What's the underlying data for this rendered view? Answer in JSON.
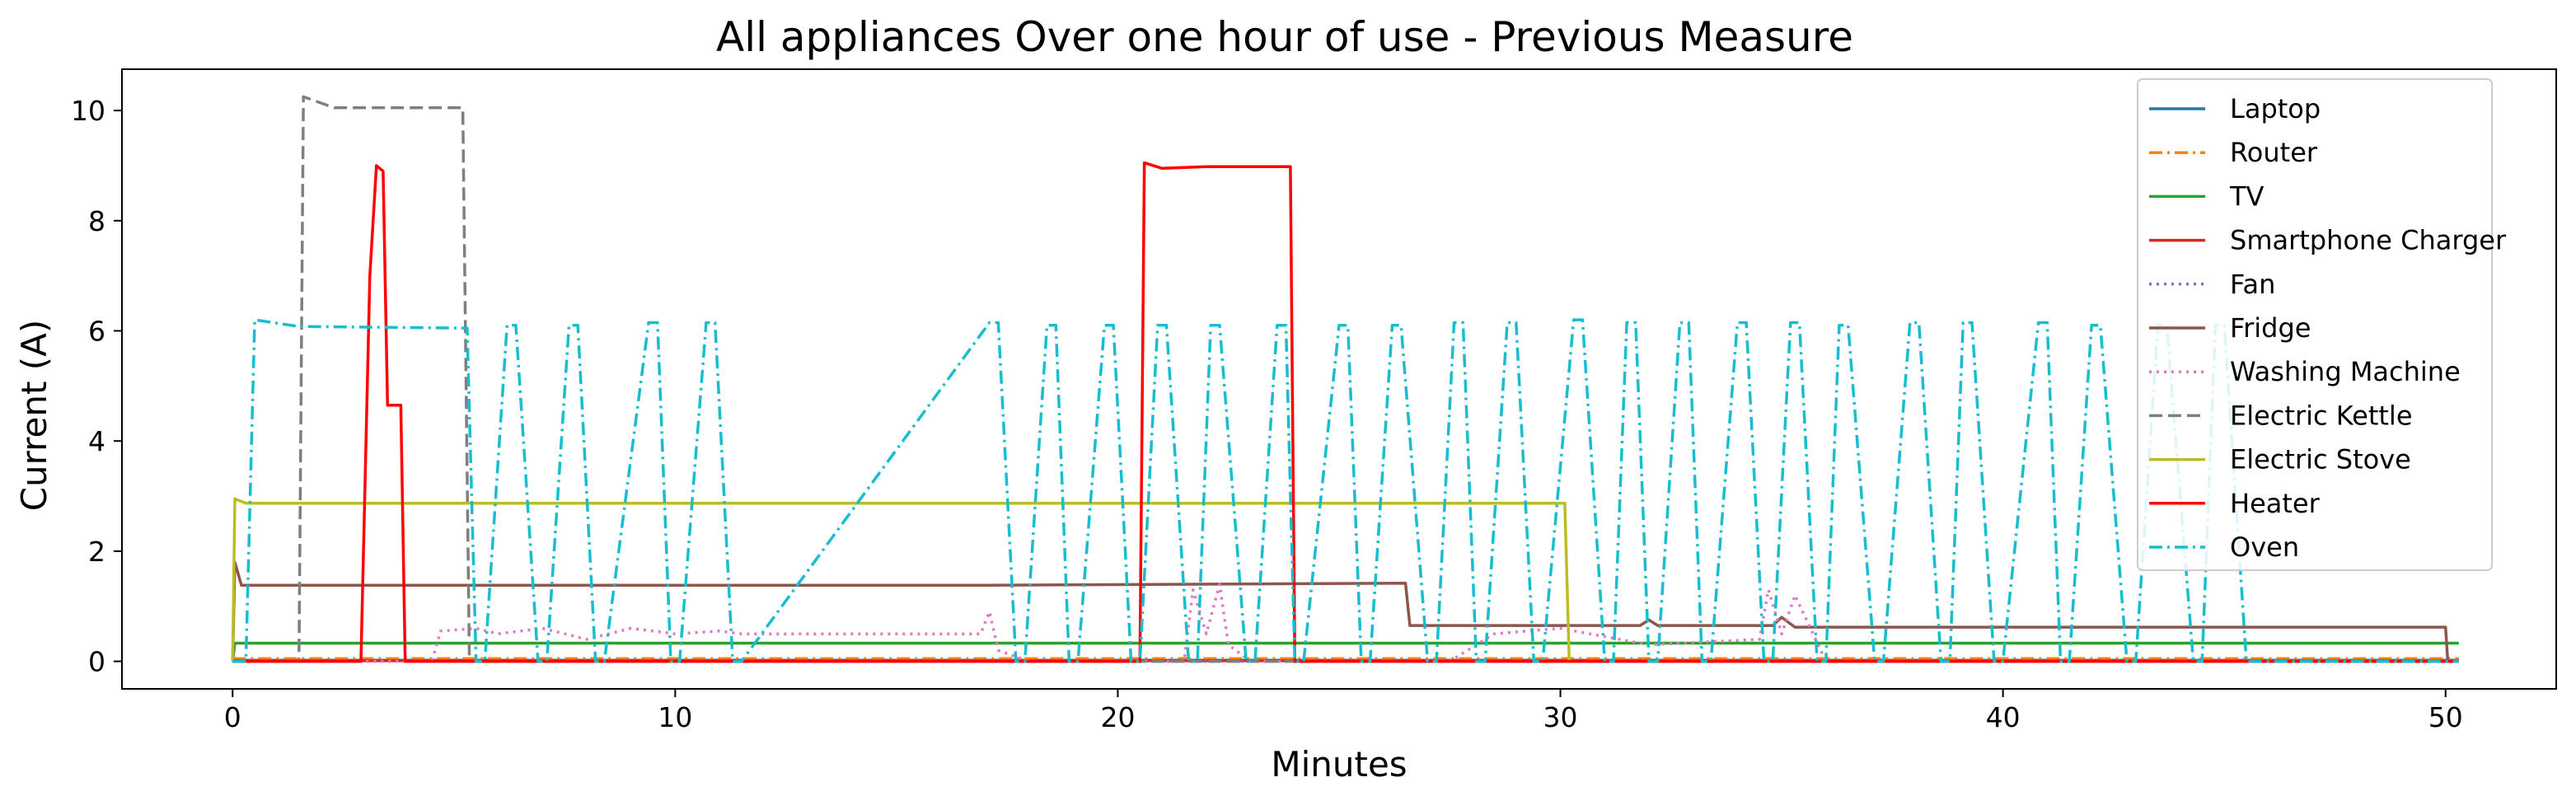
{
  "chart_data": {
    "type": "line",
    "title": "All appliances Over one hour of use - Previous Measure",
    "xlabel": "Minutes",
    "ylabel": "Current (A)",
    "xlim": [
      -2.5,
      52.5
    ],
    "ylim": [
      -0.5,
      10.75
    ],
    "xticks": [
      0,
      10,
      20,
      30,
      40,
      50
    ],
    "yticks": [
      0,
      2,
      4,
      6,
      8,
      10
    ],
    "grid": false,
    "legend_position": "top-right",
    "series": [
      {
        "name": "Laptop",
        "color": "#1f77b4",
        "style": "solid",
        "x": [
          0,
          50.3
        ],
        "y": [
          0.02,
          0.02
        ]
      },
      {
        "name": "Router",
        "color": "#ff7f0e",
        "style": "dashdot",
        "x": [
          0,
          50.3
        ],
        "y": [
          0.05,
          0.05
        ]
      },
      {
        "name": "TV",
        "color": "#2ca02c",
        "style": "solid",
        "x": [
          0,
          0.05,
          50.3
        ],
        "y": [
          0,
          0.33,
          0.33
        ]
      },
      {
        "name": "Smartphone Charger",
        "color": "#d62728",
        "style": "solid",
        "x": [
          0,
          50.3
        ],
        "y": [
          0.01,
          0.01
        ]
      },
      {
        "name": "Fan",
        "color": "#9467bd",
        "style": "dotted",
        "x": [
          0,
          50.3
        ],
        "y": [
          0.0,
          0.0
        ]
      },
      {
        "name": "Fridge",
        "color": "#8c564b",
        "style": "solid",
        "x": [
          0,
          0.05,
          0.2,
          17.0,
          26.5,
          26.6,
          31.8,
          32.0,
          32.2,
          34.8,
          35.0,
          35.3,
          50.0,
          50.05
        ],
        "y": [
          0.0,
          1.8,
          1.38,
          1.38,
          1.42,
          0.65,
          0.65,
          0.75,
          0.65,
          0.65,
          0.8,
          0.62,
          0.62,
          0.0
        ]
      },
      {
        "name": "Washing Machine",
        "color": "#e377c2",
        "style": "dotted",
        "x": [
          0,
          4.5,
          4.7,
          5.5,
          6,
          7,
          8,
          9,
          10,
          11,
          11.5,
          16.9,
          17.1,
          17.3,
          18,
          21.5,
          21.7,
          22.0,
          22.3,
          22.5,
          23,
          27.5,
          28.5,
          30,
          32,
          34.5,
          34.7,
          35.0,
          35.3,
          36,
          50.3
        ],
        "y": [
          0.0,
          0.0,
          0.55,
          0.6,
          0.5,
          0.6,
          0.4,
          0.6,
          0.5,
          0.55,
          0.5,
          0.5,
          0.9,
          0.2,
          0.0,
          0.0,
          1.3,
          0.5,
          1.4,
          0.3,
          0.0,
          0.0,
          0.5,
          0.6,
          0.3,
          0.4,
          1.3,
          0.5,
          1.2,
          0.0,
          0.0
        ]
      },
      {
        "name": "Electric Kettle",
        "color": "#7f7f7f",
        "style": "dashed",
        "x": [
          0,
          1.5,
          1.6,
          2.3,
          5.2,
          5.35,
          50.3
        ],
        "y": [
          0.0,
          0.0,
          10.25,
          10.05,
          10.05,
          0.0,
          0.0
        ]
      },
      {
        "name": "Electric Stove",
        "color": "#bcbd22",
        "style": "solid",
        "x": [
          0,
          0.05,
          0.3,
          30.1,
          30.2,
          50.3
        ],
        "y": [
          0.0,
          2.95,
          2.87,
          2.87,
          0.0,
          0.0
        ]
      },
      {
        "name": "Heater",
        "color": "#ff0000",
        "style": "solid",
        "x": [
          0,
          2.9,
          3.1,
          3.25,
          3.4,
          3.5,
          3.8,
          3.9,
          20.5,
          20.6,
          21.0,
          22.0,
          23.9,
          24.0,
          50.3
        ],
        "y": [
          0.0,
          0.0,
          7.0,
          9.0,
          8.9,
          4.65,
          4.65,
          0.0,
          0.0,
          9.05,
          8.95,
          8.98,
          8.98,
          0.0,
          0.0
        ]
      },
      {
        "name": "Oven",
        "color": "#17becf",
        "style": "dashdot",
        "x": [
          0,
          0.3,
          0.5,
          1.5,
          5.3,
          5.5,
          5.7,
          6.2,
          6.4,
          6.9,
          7.1,
          7.6,
          7.8,
          8.2,
          8.4,
          9.4,
          9.6,
          9.9,
          10.1,
          10.7,
          10.9,
          11.3,
          11.5,
          17.1,
          17.3,
          17.7,
          17.9,
          18.4,
          18.6,
          18.9,
          19.1,
          19.7,
          19.9,
          20.3,
          20.5,
          20.9,
          21.1,
          21.6,
          21.8,
          22.1,
          22.3,
          22.9,
          23.1,
          23.6,
          23.8,
          24.0,
          24.2,
          25.0,
          25.2,
          25.5,
          25.7,
          26.2,
          26.4,
          27.0,
          27.2,
          27.6,
          27.8,
          28.1,
          28.3,
          28.8,
          29.0,
          29.4,
          29.6,
          30.3,
          30.5,
          31.0,
          31.2,
          31.5,
          31.7,
          32.0,
          32.2,
          32.7,
          32.9,
          33.2,
          33.4,
          34.0,
          34.2,
          34.6,
          34.8,
          35.2,
          35.4,
          35.8,
          36.0,
          36.3,
          36.5,
          37.1,
          37.3,
          37.9,
          38.1,
          38.6,
          38.8,
          39.1,
          39.3,
          39.8,
          40.0,
          40.8,
          41.0,
          41.3,
          41.5,
          42.0,
          42.2,
          42.8,
          43.0,
          43.5,
          43.7,
          44.3,
          44.5,
          44.8,
          45.0,
          45.5,
          45.7,
          50.3
        ],
        "y": [
          0.0,
          0.0,
          6.2,
          6.08,
          6.05,
          0.0,
          0.0,
          6.1,
          6.1,
          0.0,
          0.0,
          6.1,
          6.1,
          0.0,
          0.0,
          6.15,
          6.15,
          0.0,
          0.0,
          6.15,
          6.15,
          0.0,
          0.0,
          6.15,
          6.15,
          0.0,
          0.0,
          6.1,
          6.1,
          0.0,
          0.0,
          6.1,
          6.1,
          0.0,
          0.0,
          6.1,
          6.1,
          0.0,
          0.0,
          6.1,
          6.1,
          0.0,
          0.0,
          6.1,
          6.1,
          0.0,
          0.0,
          6.1,
          6.1,
          0.0,
          0.0,
          6.1,
          6.1,
          0.0,
          0.0,
          6.15,
          6.15,
          0.0,
          0.0,
          6.15,
          6.15,
          0.0,
          0.0,
          6.2,
          6.2,
          0.0,
          0.0,
          6.15,
          6.15,
          0.0,
          0.0,
          6.15,
          6.15,
          0.0,
          0.0,
          6.15,
          6.15,
          0.0,
          0.0,
          6.15,
          6.15,
          0.0,
          0.0,
          6.1,
          6.1,
          0.0,
          0.0,
          6.15,
          6.15,
          0.0,
          0.0,
          6.15,
          6.15,
          0.0,
          0.0,
          6.15,
          6.15,
          0.0,
          0.0,
          6.1,
          6.1,
          0.0,
          0.0,
          6.1,
          6.1,
          0.0,
          0.0,
          6.1,
          6.1,
          0.0,
          0.0,
          0.0
        ]
      }
    ]
  }
}
